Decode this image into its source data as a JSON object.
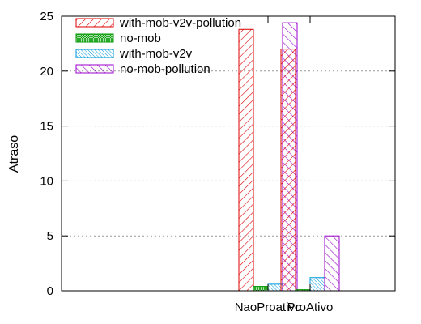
{
  "chart_data": {
    "type": "bar",
    "title": "",
    "xlabel": "",
    "ylabel": "Atraso",
    "ylim": [
      0,
      25
    ],
    "yticks": [
      "0",
      "5",
      "10",
      "15",
      "20",
      "25"
    ],
    "categories": [
      "",
      "NaoProativo",
      "ProAtivo"
    ],
    "grid": "horizontal, dotted",
    "legend_position": "top-left",
    "series": [
      {
        "name": "with-mob-v2v-pollution",
        "values": [
          0,
          23.8,
          22.0
        ],
        "color": "#dd0000",
        "hatch": "forward-diagonal"
      },
      {
        "name": "no-mob",
        "values": [
          0,
          0.4,
          0.1
        ],
        "color": "#009900",
        "hatch": "cross"
      },
      {
        "name": "with-mob-v2v",
        "values": [
          0,
          0.6,
          1.2
        ],
        "color": "#0099dd",
        "hatch": "back-diagonal-dense"
      },
      {
        "name": "no-mob-pollution",
        "values": [
          0,
          24.4,
          5.0
        ],
        "color": "#9900cc",
        "hatch": "back-diagonal"
      }
    ]
  }
}
